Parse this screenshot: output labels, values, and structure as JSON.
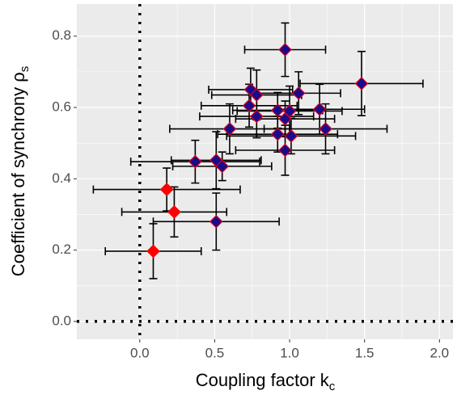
{
  "chart_data": {
    "type": "scatter",
    "xlabel": {
      "text": "Coupling factor k",
      "subscript": "c"
    },
    "ylabel": {
      "text": "Coefficient of synchrony ρ",
      "subscript": "s"
    },
    "xlim": [
      -0.42,
      2.09
    ],
    "ylim": [
      -0.05,
      0.89
    ],
    "xticks": [
      {
        "value": 0,
        "label": "0.0"
      },
      0.5,
      {
        "value": 1,
        "label": "1.0"
      },
      1.5,
      {
        "value": 2,
        "label": "2.0"
      }
    ],
    "yticks": [
      {
        "value": 0,
        "label": "0.0"
      },
      0.2,
      0.4,
      0.6,
      0.8
    ],
    "grid": true,
    "vline": 0,
    "hline": 0,
    "series": [
      {
        "color": "#ff0000",
        "edge": "#ff0000",
        "x": [
          0.09,
          0.18,
          0.23
        ],
        "values": [
          0.197,
          0.37,
          0.307
        ],
        "xerr": [
          0.32,
          0.49,
          0.35
        ],
        "yerr": [
          0.077,
          0.06,
          0.07
        ]
      },
      {
        "color": "#1a0a8c",
        "edge": "#e0001b",
        "x": [
          0.51,
          0.37,
          0.51,
          0.55,
          0.6,
          0.74,
          0.73,
          0.78,
          0.78,
          0.97,
          0.92,
          0.97,
          1.0,
          0.92,
          0.97,
          1.01,
          1.06,
          1.2,
          1.24,
          1.48
        ],
        "values": [
          0.28,
          0.448,
          0.452,
          0.435,
          0.54,
          0.65,
          0.605,
          0.635,
          0.575,
          0.762,
          0.592,
          0.568,
          0.59,
          0.525,
          0.48,
          0.52,
          0.64,
          0.595,
          0.54,
          0.667
        ],
        "xerr": [
          0.42,
          0.43,
          0.3,
          0.33,
          0.4,
          0.28,
          0.32,
          0.3,
          0.38,
          0.27,
          0.3,
          0.33,
          0.35,
          0.4,
          0.33,
          0.43,
          0.28,
          0.3,
          0.41,
          0.41
        ],
        "yerr": [
          0.08,
          0.06,
          0.08,
          0.04,
          0.07,
          0.06,
          0.06,
          0.07,
          0.06,
          0.075,
          0.05,
          0.05,
          0.07,
          0.05,
          0.07,
          0.05,
          0.06,
          0.07,
          0.07,
          0.09
        ]
      }
    ]
  }
}
